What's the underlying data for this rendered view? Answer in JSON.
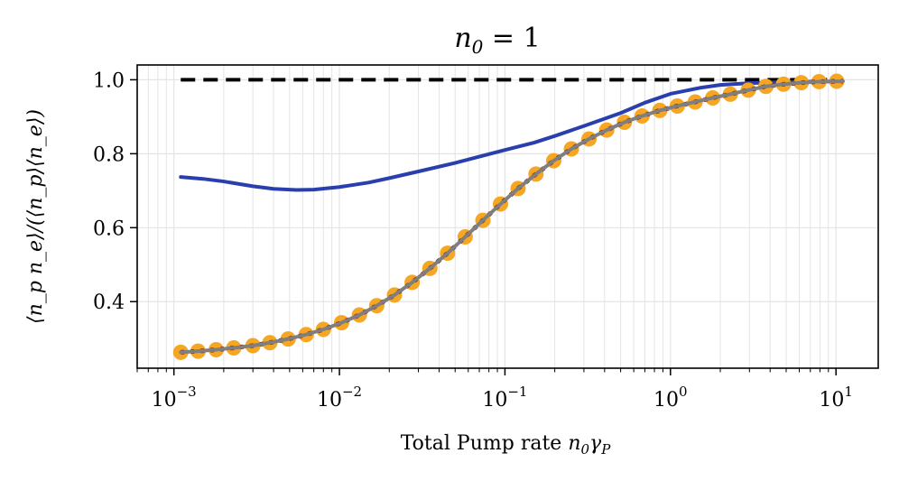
{
  "chart_data": {
    "type": "line",
    "title_base": "n",
    "title_sub": "0",
    "title_rest": " = 1",
    "xlabel_text": "Total Pump rate ",
    "xlabel_math_n": "n",
    "xlabel_math_n_sub": "0",
    "xlabel_math_gamma": "γ",
    "xlabel_math_gamma_sub": "P",
    "ylabel": "⟨n_p n_e⟩/(⟨n_p⟩⟨n_e⟩)",
    "xscale": "log",
    "xlim": [
      0.0006,
      18
    ],
    "ylim": [
      0.22,
      1.04
    ],
    "grid": true,
    "x_ticks": [
      {
        "value": 0.001,
        "base": "10",
        "exp": "−3"
      },
      {
        "value": 0.01,
        "base": "10",
        "exp": "−2"
      },
      {
        "value": 0.1,
        "base": "10",
        "exp": "−1"
      },
      {
        "value": 1,
        "base": "10",
        "exp": "0"
      },
      {
        "value": 10,
        "base": "10",
        "exp": "1"
      }
    ],
    "y_ticks": [
      {
        "value": 0.4,
        "label": "0.4"
      },
      {
        "value": 0.6,
        "label": "0.6"
      },
      {
        "value": 0.8,
        "label": "0.8"
      },
      {
        "value": 1.0,
        "label": "1.0"
      }
    ],
    "series": [
      {
        "name": "reference-dashed",
        "style": "dashed",
        "color": "#000000",
        "x": [
          0.0011,
          11
        ],
        "y": [
          1.0,
          1.0
        ]
      },
      {
        "name": "blue-line",
        "style": "solid",
        "color": "#2a3fae",
        "x": [
          0.0011,
          0.0015,
          0.002,
          0.003,
          0.004,
          0.0055,
          0.007,
          0.01,
          0.015,
          0.02,
          0.03,
          0.05,
          0.07,
          0.1,
          0.15,
          0.2,
          0.3,
          0.5,
          0.7,
          1.0,
          1.5,
          2.0,
          3.0,
          5.0,
          8.0,
          11.0
        ],
        "y": [
          0.737,
          0.732,
          0.725,
          0.712,
          0.705,
          0.702,
          0.703,
          0.71,
          0.722,
          0.734,
          0.752,
          0.775,
          0.792,
          0.81,
          0.83,
          0.848,
          0.875,
          0.91,
          0.938,
          0.962,
          0.978,
          0.986,
          0.991,
          0.994,
          0.995,
          0.996
        ]
      },
      {
        "name": "orange-dots",
        "style": "markers",
        "color": "#f5a623",
        "x": [
          0.0011,
          0.0014,
          0.0018,
          0.0023,
          0.003,
          0.0038,
          0.0049,
          0.0063,
          0.008,
          0.0103,
          0.0132,
          0.0168,
          0.0215,
          0.0275,
          0.0352,
          0.045,
          0.0575,
          0.0736,
          0.094,
          0.12,
          0.154,
          0.197,
          0.252,
          0.322,
          0.412,
          0.527,
          0.674,
          0.862,
          1.1,
          1.41,
          1.8,
          2.3,
          2.95,
          3.77,
          4.82,
          6.17,
          7.9,
          10.1
        ],
        "y": [
          0.263,
          0.266,
          0.27,
          0.275,
          0.281,
          0.289,
          0.299,
          0.311,
          0.325,
          0.343,
          0.364,
          0.389,
          0.418,
          0.452,
          0.49,
          0.531,
          0.575,
          0.62,
          0.664,
          0.706,
          0.745,
          0.781,
          0.813,
          0.84,
          0.864,
          0.885,
          0.902,
          0.917,
          0.929,
          0.94,
          0.951,
          0.961,
          0.972,
          0.982,
          0.988,
          0.992,
          0.995,
          0.996
        ]
      },
      {
        "name": "darkred-dotted",
        "style": "dotted",
        "color": "#7a1a10",
        "x": [
          0.0011,
          0.0014,
          0.0018,
          0.0023,
          0.003,
          0.0038,
          0.0049,
          0.0063,
          0.008,
          0.0103,
          0.0132,
          0.0168,
          0.0215,
          0.0275,
          0.0352,
          0.045,
          0.0575,
          0.0736,
          0.094,
          0.12,
          0.154,
          0.197,
          0.252,
          0.322,
          0.412,
          0.527,
          0.674,
          0.862,
          1.1,
          1.41,
          1.8,
          2.3,
          2.95,
          3.77,
          4.82,
          6.17,
          7.9,
          11.0
        ],
        "y": [
          0.263,
          0.266,
          0.27,
          0.275,
          0.281,
          0.289,
          0.299,
          0.311,
          0.325,
          0.343,
          0.364,
          0.389,
          0.418,
          0.452,
          0.49,
          0.531,
          0.575,
          0.62,
          0.664,
          0.706,
          0.745,
          0.781,
          0.813,
          0.84,
          0.864,
          0.885,
          0.902,
          0.917,
          0.929,
          0.94,
          0.951,
          0.961,
          0.972,
          0.982,
          0.988,
          0.992,
          0.995,
          0.996
        ]
      },
      {
        "name": "gray-line",
        "style": "solid",
        "color": "#7f7f7f",
        "x": [
          0.0011,
          0.0014,
          0.0018,
          0.0023,
          0.003,
          0.0038,
          0.0049,
          0.0063,
          0.008,
          0.0103,
          0.0132,
          0.0168,
          0.0215,
          0.0275,
          0.0352,
          0.045,
          0.0575,
          0.0736,
          0.094,
          0.12,
          0.154,
          0.197,
          0.252,
          0.322,
          0.412,
          0.527,
          0.674,
          0.862,
          1.1,
          1.41,
          1.8,
          2.3,
          2.95,
          3.77,
          4.82,
          6.17,
          7.9,
          11.0
        ],
        "y": [
          0.263,
          0.266,
          0.27,
          0.275,
          0.281,
          0.289,
          0.299,
          0.311,
          0.325,
          0.343,
          0.364,
          0.389,
          0.418,
          0.452,
          0.49,
          0.531,
          0.575,
          0.62,
          0.664,
          0.706,
          0.745,
          0.781,
          0.813,
          0.84,
          0.864,
          0.885,
          0.902,
          0.917,
          0.929,
          0.94,
          0.951,
          0.961,
          0.972,
          0.982,
          0.988,
          0.992,
          0.995,
          0.996
        ]
      }
    ]
  }
}
